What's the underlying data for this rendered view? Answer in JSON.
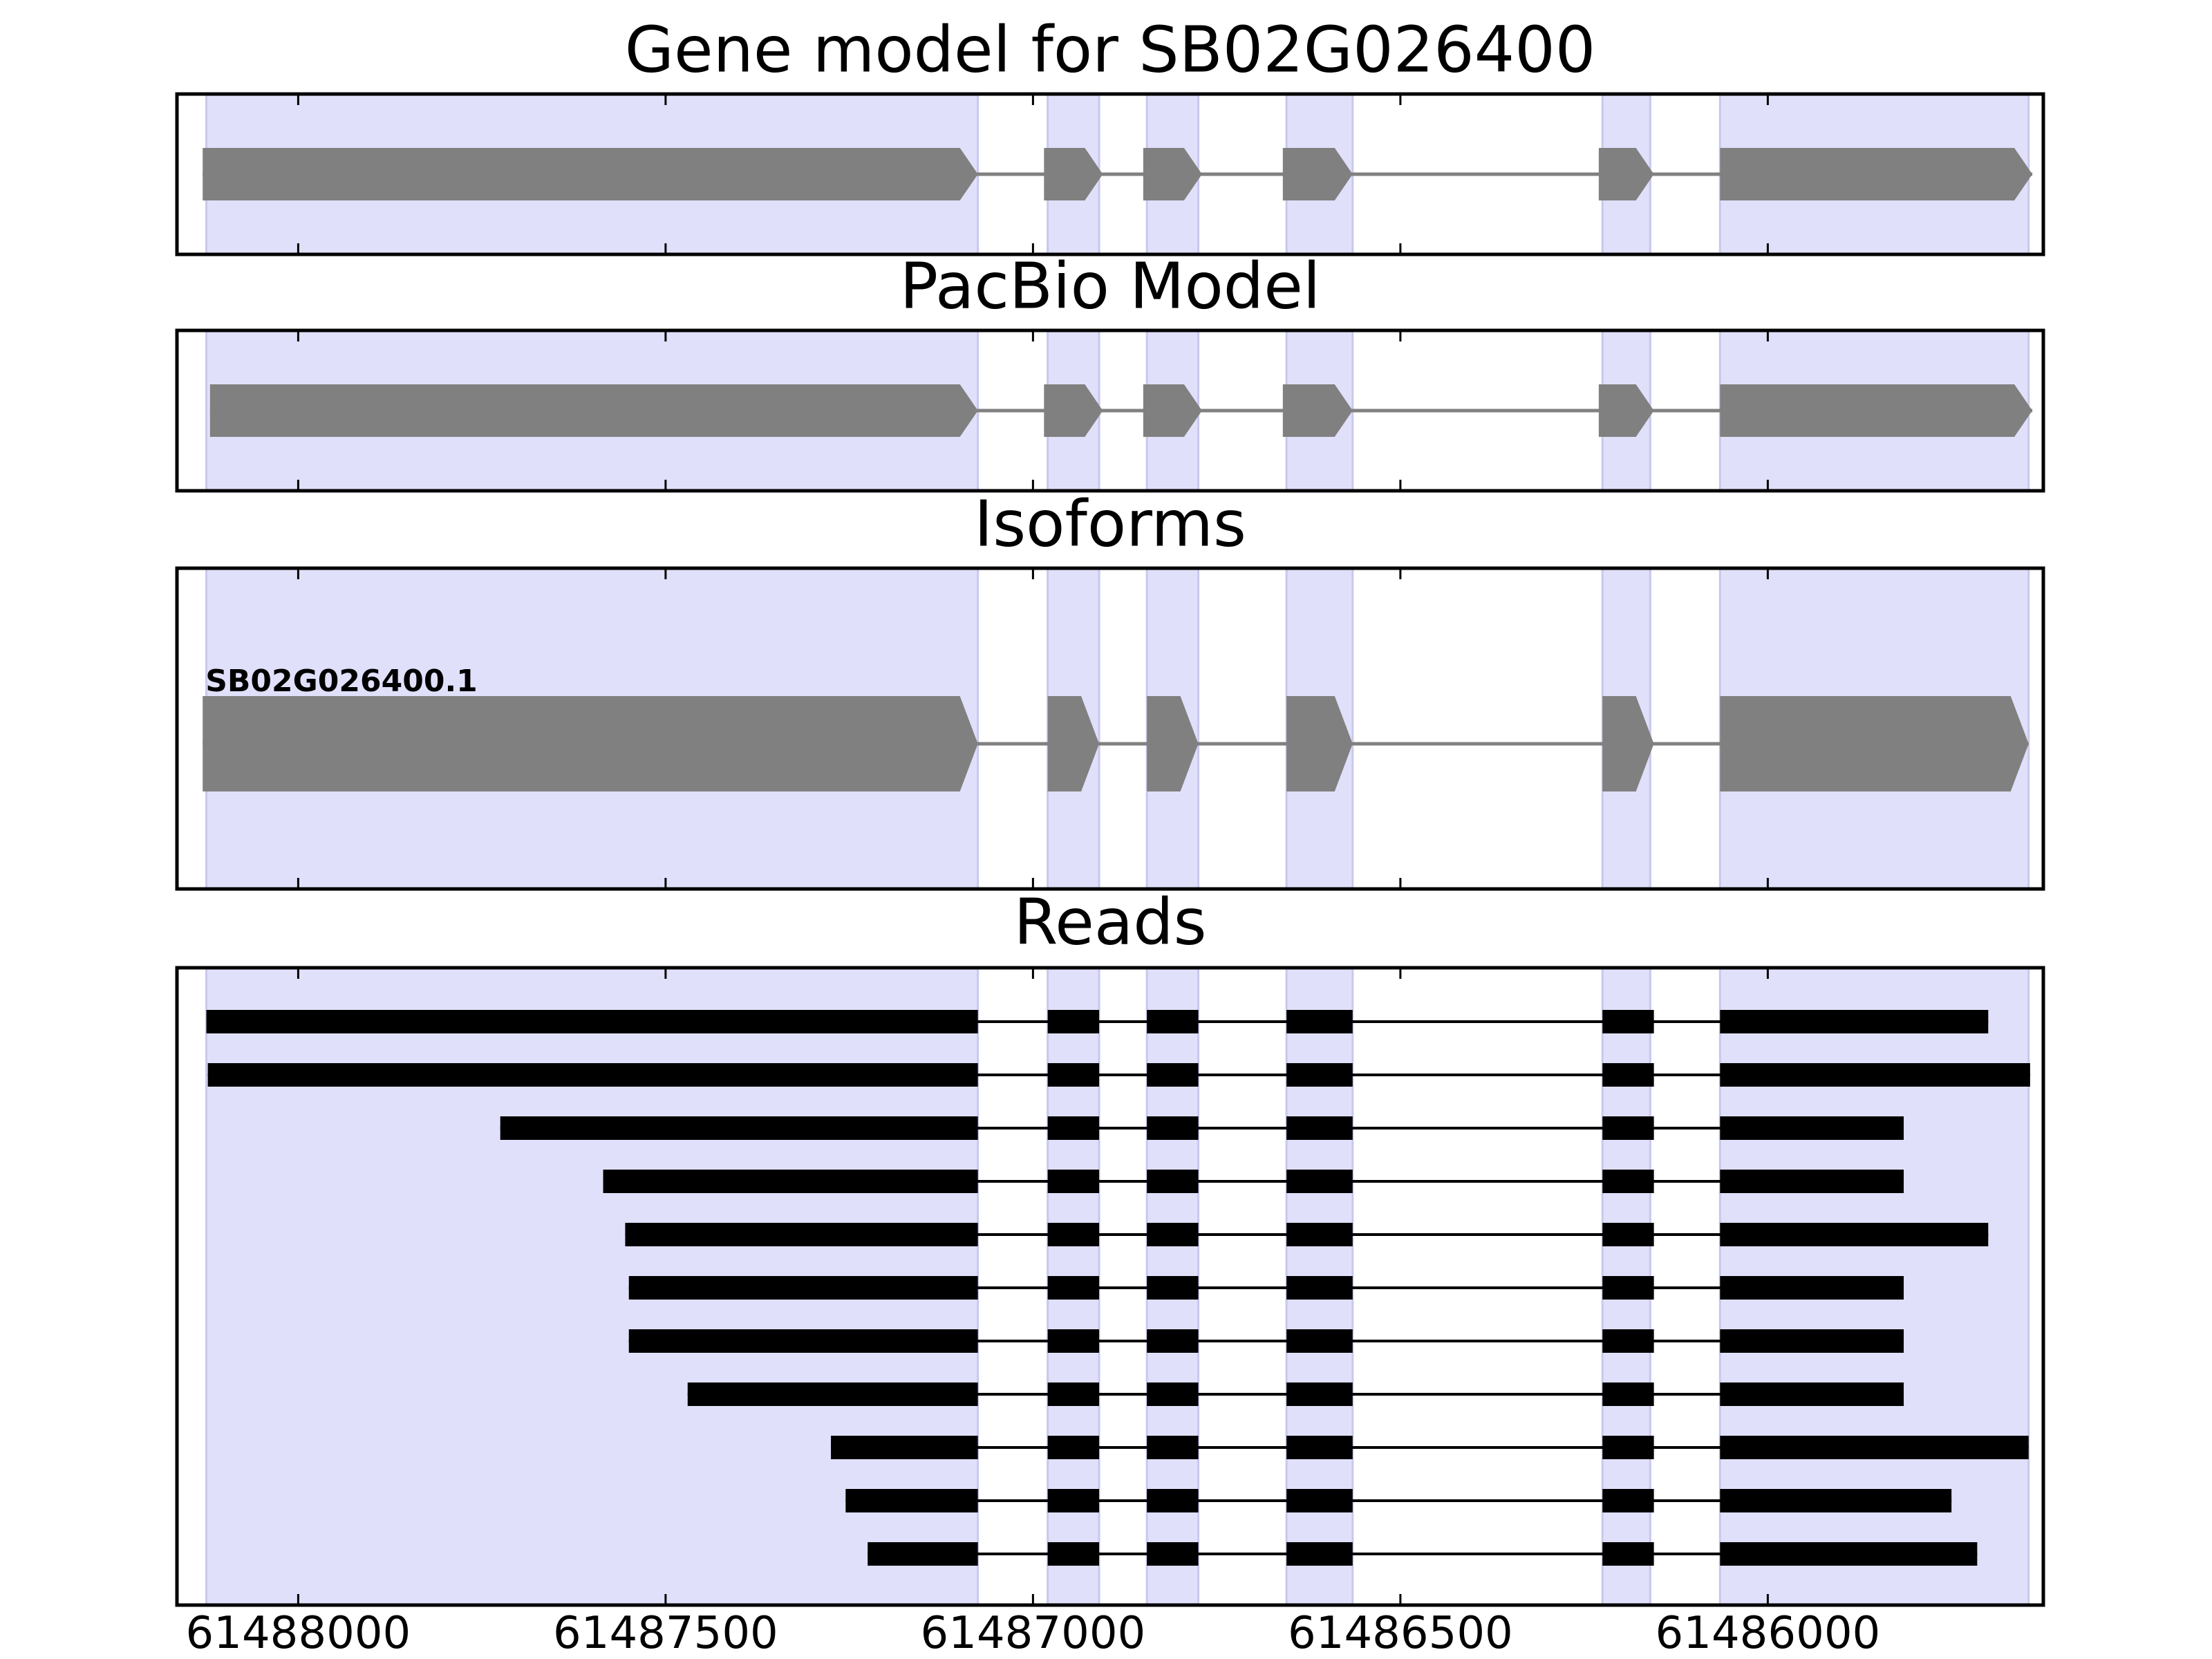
{
  "chart_data": {
    "type": "gene_track",
    "x_reversed": true,
    "xlim": [
      61488165,
      61485625
    ],
    "xticks": [
      61488000,
      61487500,
      61487000,
      61486500,
      61486000
    ],
    "xtick_labels": [
      "61488000",
      "61487500",
      "61487000",
      "61486500",
      "61486000"
    ],
    "highlight_color": "#e0e0fa",
    "highlight_edge_color": "#c8c8ee",
    "gene_color": "#808080",
    "read_color": "#000000",
    "exon_regions": [
      [
        61488125,
        61487075
      ],
      [
        61486980,
        61486910
      ],
      [
        61486845,
        61486775
      ],
      [
        61486655,
        61486565
      ],
      [
        61486225,
        61486160
      ],
      [
        61486065,
        61485645
      ]
    ],
    "panels": [
      {
        "title": "Gene model for SB02G026400",
        "kind": "gene",
        "models": [
          {
            "label": "",
            "exons": [
              [
                61488130,
                61487075
              ],
              [
                61486985,
                61486905
              ],
              [
                61486850,
                61486770
              ],
              [
                61486660,
                61486565
              ],
              [
                61486230,
                61486155
              ],
              [
                61486065,
                61485640
              ]
            ]
          }
        ]
      },
      {
        "title": "PacBio Model",
        "kind": "gene",
        "models": [
          {
            "label": "",
            "exons": [
              [
                61488120,
                61487075
              ],
              [
                61486985,
                61486905
              ],
              [
                61486850,
                61486770
              ],
              [
                61486660,
                61486565
              ],
              [
                61486230,
                61486155
              ],
              [
                61486065,
                61485640
              ]
            ]
          }
        ]
      },
      {
        "title": "Isoforms",
        "kind": "isoform",
        "models": [
          {
            "label": "SB02G026400.1",
            "exons": [
              [
                61488130,
                61487075
              ],
              [
                61486980,
                61486910
              ],
              [
                61486845,
                61486775
              ],
              [
                61486655,
                61486565
              ],
              [
                61486225,
                61486155
              ],
              [
                61486065,
                61485645
              ]
            ]
          }
        ]
      },
      {
        "title": "Reads",
        "kind": "reads",
        "reads": [
          [
            61488125,
            61485700
          ],
          [
            61488123,
            61485643
          ],
          [
            61487725,
            61485815
          ],
          [
            61487585,
            61485815
          ],
          [
            61487555,
            61485700
          ],
          [
            61487550,
            61485815
          ],
          [
            61487550,
            61485815
          ],
          [
            61487470,
            61485815
          ],
          [
            61487275,
            61485645
          ],
          [
            61487255,
            61485750
          ],
          [
            61487225,
            61485715
          ]
        ],
        "read_internal_exons": [
          [
            61486980,
            61486910
          ],
          [
            61486845,
            61486775
          ],
          [
            61486655,
            61486565
          ],
          [
            61486225,
            61486155
          ]
        ],
        "read_first_exon_end": 61487075,
        "read_last_exon_start": 61486065
      }
    ]
  }
}
